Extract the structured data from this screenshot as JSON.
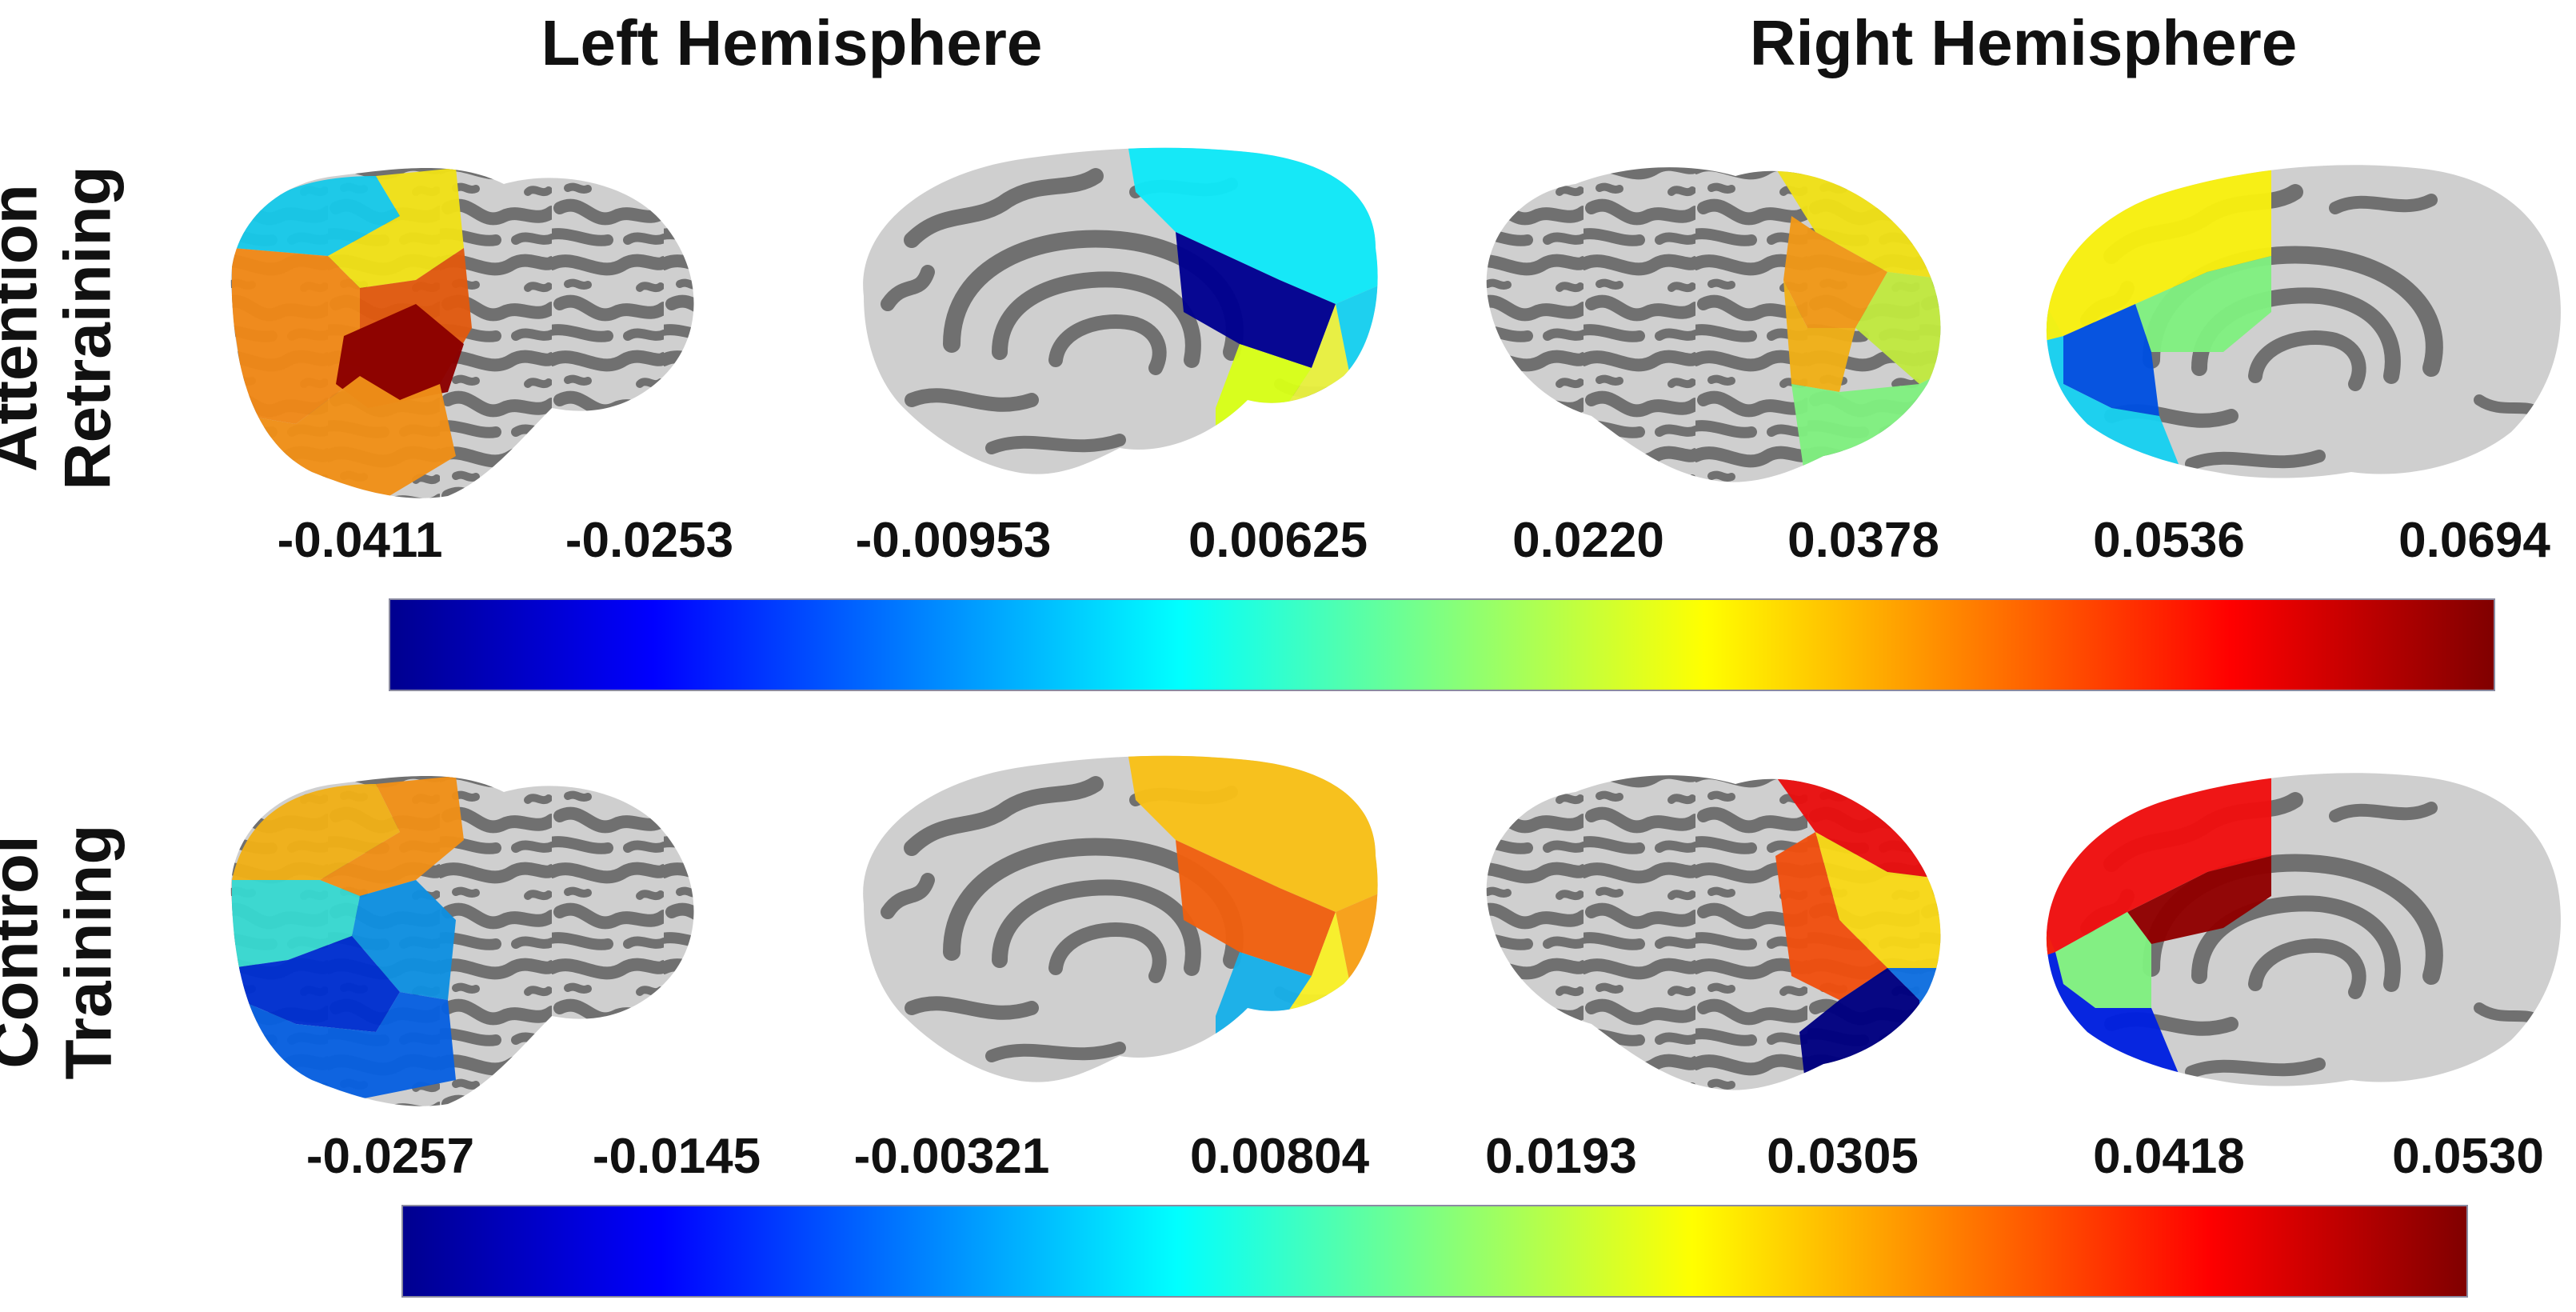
{
  "headers": {
    "left": "Left Hemisphere",
    "right": "Right Hemisphere"
  },
  "rows": [
    {
      "label_line1": "Attention",
      "label_line2": "Retraining",
      "ticks": [
        "-0.0411",
        "-0.0253",
        "-0.00953",
        "0.00625",
        "0.0220",
        "0.0378",
        "0.0536",
        "0.0694"
      ],
      "colors": {
        "ll_a": "#18c8e8",
        "ll_b": "#f0e018",
        "ll_c": "#f08818",
        "ll_d": "#e05a10",
        "ll_e": "#8b0000",
        "ll_f": "#f09018",
        "lm_a": "#10e8f8",
        "lm_b": "#000090",
        "lm_c": "#18d0f0",
        "lm_d": "#e8f040",
        "lm_e": "#d8ff18",
        "rl_a": "#f0e018",
        "rl_b": "#f09818",
        "rl_c": "#c0e840",
        "rl_d": "#f0b018",
        "rl_e": "#80f080",
        "rm_a": "#f8f010",
        "rm_b": "#80f080",
        "rm_c": "#0050e0",
        "rm_d": "#18d0f0",
        "rm_e": "#f0f018"
      }
    },
    {
      "label_line1": "Control",
      "label_line2": "Training",
      "ticks": [
        "-0.0257",
        "-0.0145",
        "-0.00321",
        "0.00804",
        "0.0193",
        "0.0305",
        "0.0418",
        "0.0530"
      ],
      "colors": {
        "ll_a": "#f0b018",
        "ll_b": "#f09018",
        "ll_c": "#38d8d0",
        "ll_d": "#1090e0",
        "ll_e": "#0030d0",
        "ll_f": "#0860e0",
        "lm_a": "#f8c018",
        "lm_b": "#f06010",
        "lm_c": "#f8a018",
        "lm_d": "#f8f028",
        "lm_e": "#18b0e8",
        "rl_a": "#e81010",
        "rl_b": "#f8d818",
        "rl_c": "#f05010",
        "rl_d": "#000080",
        "rl_e": "#1070e0",
        "rm_a": "#f01010",
        "rm_b": "#900000",
        "rm_c": "#80f080",
        "rm_d": "#0020e0",
        "rm_e": "#f02010"
      }
    }
  ]
}
